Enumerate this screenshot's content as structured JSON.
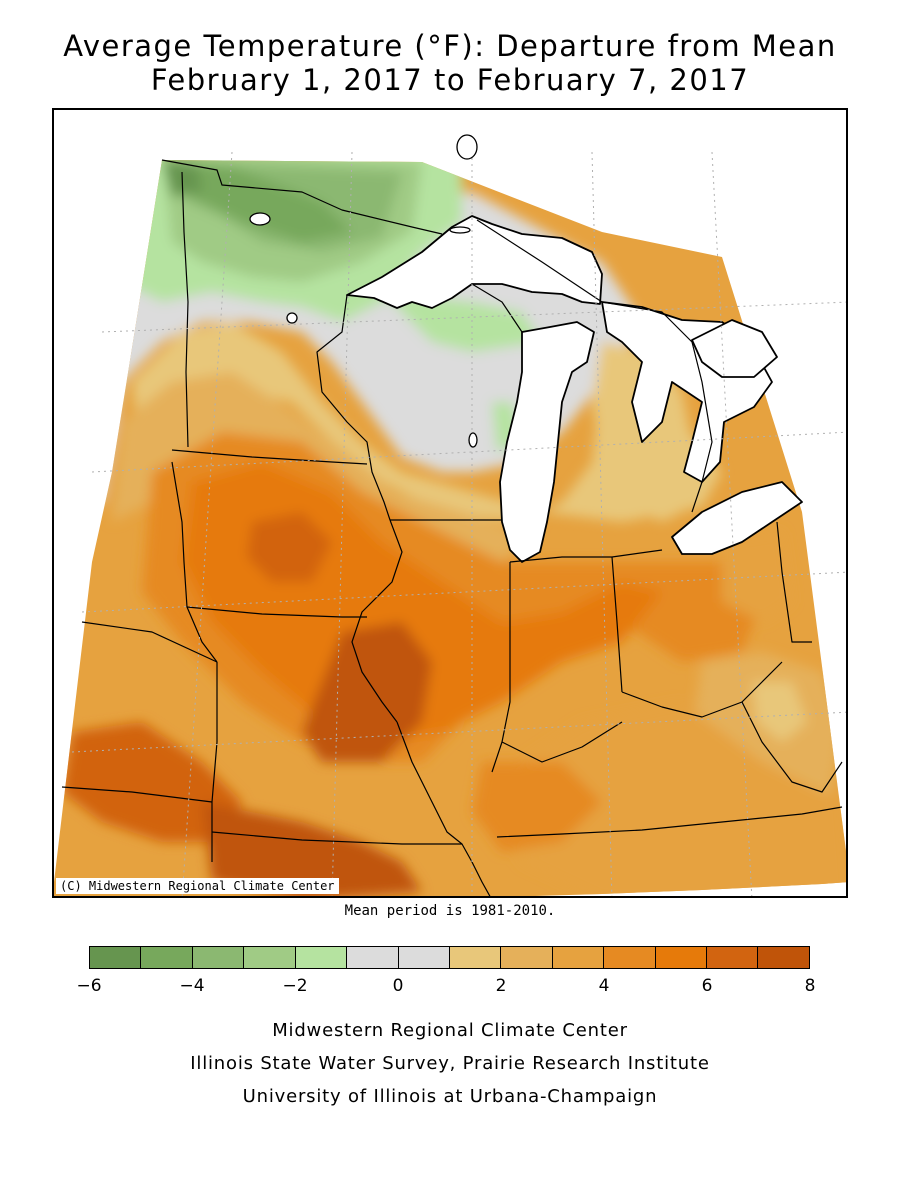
{
  "title_line1": "Average Temperature (°F): Departure from Mean",
  "title_line2": "February 1, 2017 to February 7, 2017",
  "copyright": "(C) Midwestern Regional Climate Center",
  "mean_period": "Mean period is 1981-2010.",
  "legend": {
    "colors": [
      "#66954f",
      "#77a85c",
      "#8bb871",
      "#a0cb85",
      "#b5e3a0",
      "#dcdcdc",
      "#dcdcdc",
      "#e8c77a",
      "#e5b05a",
      "#e6a23f",
      "#e68a22",
      "#e67a0a",
      "#d26410",
      "#c05409"
    ],
    "tick_labels": [
      "-6",
      "-4",
      "-2",
      "0",
      "2",
      "4",
      "6",
      "8"
    ]
  },
  "credits": {
    "line1": "Midwestern Regional Climate Center",
    "line2": "Illinois State Water Survey, Prairie Research Institute",
    "line3": "University of Illinois at Urbana-Champaign"
  }
}
